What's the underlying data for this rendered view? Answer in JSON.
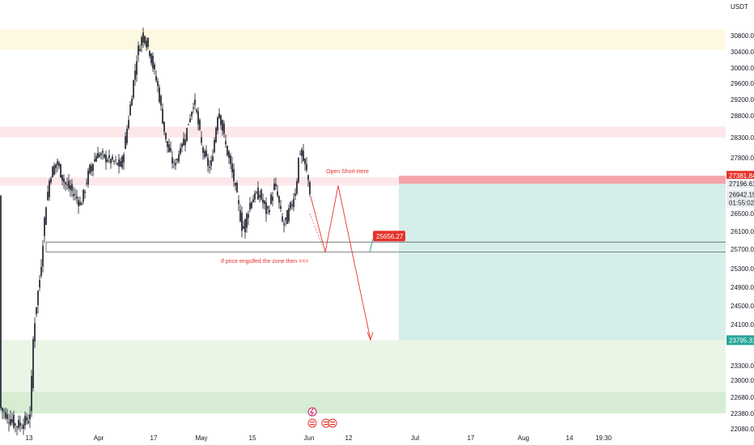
{
  "chart_data": {
    "type": "candlestick",
    "currency_label": "USDT",
    "y_ticks": [
      30800,
      30400,
      30000,
      29600,
      29200,
      28800,
      28300,
      27800,
      26500,
      26100,
      25700,
      25300,
      24900,
      24500,
      24100,
      23300,
      23000,
      22680,
      22380,
      22080
    ],
    "y_tick_labels": [
      "30800.00",
      "30400.00",
      "30000.00",
      "29600.00",
      "29200.00",
      "28800.00",
      "28300.00",
      "27800.00",
      "26500.00",
      "26100.00",
      "25700.00",
      "25300.00",
      "24900.00",
      "24500.00",
      "24100.00",
      "23300.00",
      "23000.00",
      "22680.00",
      "22380.00",
      "22080.00"
    ],
    "x_ticks": [
      "13",
      "Apr",
      "17",
      "May",
      "15",
      "Jun",
      "12",
      "Jul",
      "17",
      "Aug",
      "14",
      "19:30"
    ],
    "price_tags": {
      "short_entry": "27381.84",
      "short_entry_low": "27196.61",
      "last_price": "26942.15",
      "countdown": "01:55:02",
      "target": "23795.31",
      "zone_mid": "25656.27"
    },
    "zones": [
      {
        "name": "supply-top",
        "from": 30450,
        "to": 30950,
        "color": "#fdf8e1"
      },
      {
        "name": "resistance-1",
        "from": 28300,
        "to": 28550,
        "color": "#fce8ea"
      },
      {
        "name": "resistance-2",
        "from": 27150,
        "to": 27350,
        "color": "#fce8ea"
      },
      {
        "name": "demand-1",
        "from": 22780,
        "to": 23800,
        "color": "#eaf5e6"
      },
      {
        "name": "demand-2",
        "from": 22380,
        "to": 22780,
        "color": "#d6ecd3"
      }
    ],
    "annotations": {
      "open_short": "Open Short Here",
      "engulf_note": "If price engulfed the zone then ==>"
    },
    "colors": {
      "candle": "#131722",
      "short_red": "#f3a5ab",
      "profit_teal": "#d6eeea",
      "annotation": "#e5332a",
      "tag_red": "#e5332a",
      "tag_teal": "#26a69a"
    }
  }
}
